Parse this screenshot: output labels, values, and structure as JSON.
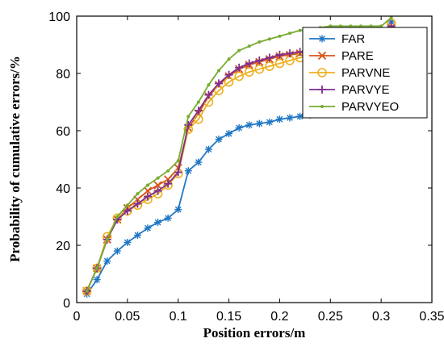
{
  "chart_data": {
    "type": "line",
    "xlabel": "Position errors/m",
    "ylabel": "Probability of cumulative errors/%",
    "xlim": [
      0,
      0.35
    ],
    "ylim": [
      0,
      100
    ],
    "xticks": [
      "0",
      "0.05",
      "0.1",
      "0.15",
      "0.2",
      "0.25",
      "0.3",
      "0.35"
    ],
    "yticks": [
      "0",
      "20",
      "40",
      "60",
      "80",
      "100"
    ],
    "grid": false,
    "legend_position": "top-right",
    "series": [
      {
        "name": "FAR",
        "color": "#1f77c4",
        "marker": "asterisk",
        "x": [
          0.01,
          0.02,
          0.03,
          0.04,
          0.05,
          0.06,
          0.07,
          0.08,
          0.09,
          0.1,
          0.11,
          0.12,
          0.13,
          0.14,
          0.15,
          0.16,
          0.17,
          0.18,
          0.19,
          0.2,
          0.21,
          0.22,
          0.23,
          0.24,
          0.25,
          0.26,
          0.27,
          0.28,
          0.29,
          0.3,
          0.31
        ],
        "y": [
          3,
          8,
          14.5,
          18,
          21,
          23.5,
          26,
          28,
          29.5,
          32.5,
          46,
          49,
          53.5,
          57,
          59,
          61,
          62,
          62.5,
          63,
          64,
          64.5,
          65,
          65.5,
          66,
          66,
          66,
          66,
          66,
          66,
          66,
          98
        ]
      },
      {
        "name": "PARE",
        "color": "#d95319",
        "marker": "x",
        "x": [
          0.01,
          0.02,
          0.03,
          0.04,
          0.05,
          0.06,
          0.07,
          0.08,
          0.09,
          0.1,
          0.11,
          0.12,
          0.13,
          0.14,
          0.15,
          0.16,
          0.17,
          0.18,
          0.19,
          0.2,
          0.21,
          0.22,
          0.23,
          0.24,
          0.25,
          0.26,
          0.27,
          0.28,
          0.29,
          0.3,
          0.31
        ],
        "y": [
          4,
          12,
          22,
          29,
          33,
          36,
          39,
          41,
          43,
          47,
          61,
          66,
          72,
          76,
          79,
          81.5,
          83,
          84,
          85,
          86,
          86.5,
          87,
          88,
          88.5,
          89,
          89.5,
          90,
          90,
          90,
          90,
          96
        ]
      },
      {
        "name": "PARVNE",
        "color": "#edb120",
        "marker": "circle",
        "x": [
          0.01,
          0.02,
          0.03,
          0.04,
          0.05,
          0.06,
          0.07,
          0.08,
          0.09,
          0.1,
          0.11,
          0.12,
          0.13,
          0.14,
          0.15,
          0.16,
          0.17,
          0.18,
          0.19,
          0.2,
          0.21,
          0.22,
          0.23,
          0.24,
          0.25,
          0.26,
          0.27,
          0.28,
          0.29,
          0.3,
          0.31
        ],
        "y": [
          4,
          12,
          23,
          29.5,
          32,
          34,
          36,
          38,
          41,
          45,
          60.5,
          64,
          70,
          74,
          77,
          79,
          80.5,
          81.5,
          82.5,
          83.5,
          84.5,
          85.5,
          86,
          86.5,
          87,
          87,
          87.5,
          88,
          88,
          88,
          97.5
        ]
      },
      {
        "name": "PARVYE",
        "color": "#7e2f8e",
        "marker": "plus",
        "x": [
          0.01,
          0.02,
          0.03,
          0.04,
          0.05,
          0.06,
          0.07,
          0.08,
          0.09,
          0.1,
          0.11,
          0.12,
          0.13,
          0.14,
          0.15,
          0.16,
          0.17,
          0.18,
          0.19,
          0.2,
          0.21,
          0.22,
          0.23,
          0.24,
          0.25,
          0.26,
          0.27,
          0.28,
          0.29,
          0.3,
          0.31
        ],
        "y": [
          4,
          12,
          22,
          29,
          32,
          34.5,
          37,
          39,
          41.5,
          45.5,
          62,
          67,
          72.5,
          76.5,
          79.5,
          82,
          83.5,
          84.5,
          85.5,
          86.5,
          87,
          87.5,
          88,
          88.5,
          89,
          89.5,
          90,
          90,
          90,
          90,
          96.5
        ]
      },
      {
        "name": "PARVYEO",
        "color": "#77ac30",
        "marker": "dot",
        "x": [
          0.01,
          0.02,
          0.03,
          0.04,
          0.05,
          0.06,
          0.07,
          0.08,
          0.09,
          0.1,
          0.11,
          0.12,
          0.13,
          0.14,
          0.15,
          0.16,
          0.17,
          0.18,
          0.19,
          0.2,
          0.21,
          0.22,
          0.23,
          0.24,
          0.25,
          0.26,
          0.27,
          0.28,
          0.29,
          0.3,
          0.31
        ],
        "y": [
          4,
          12,
          22,
          30,
          34,
          38,
          41,
          43.5,
          46,
          49.5,
          65,
          70,
          76,
          81,
          85,
          88,
          89.5,
          91,
          92,
          93,
          94,
          95,
          95.5,
          96,
          96.5,
          96.5,
          96.5,
          96.5,
          96.5,
          96.5,
          99.5
        ]
      }
    ]
  }
}
